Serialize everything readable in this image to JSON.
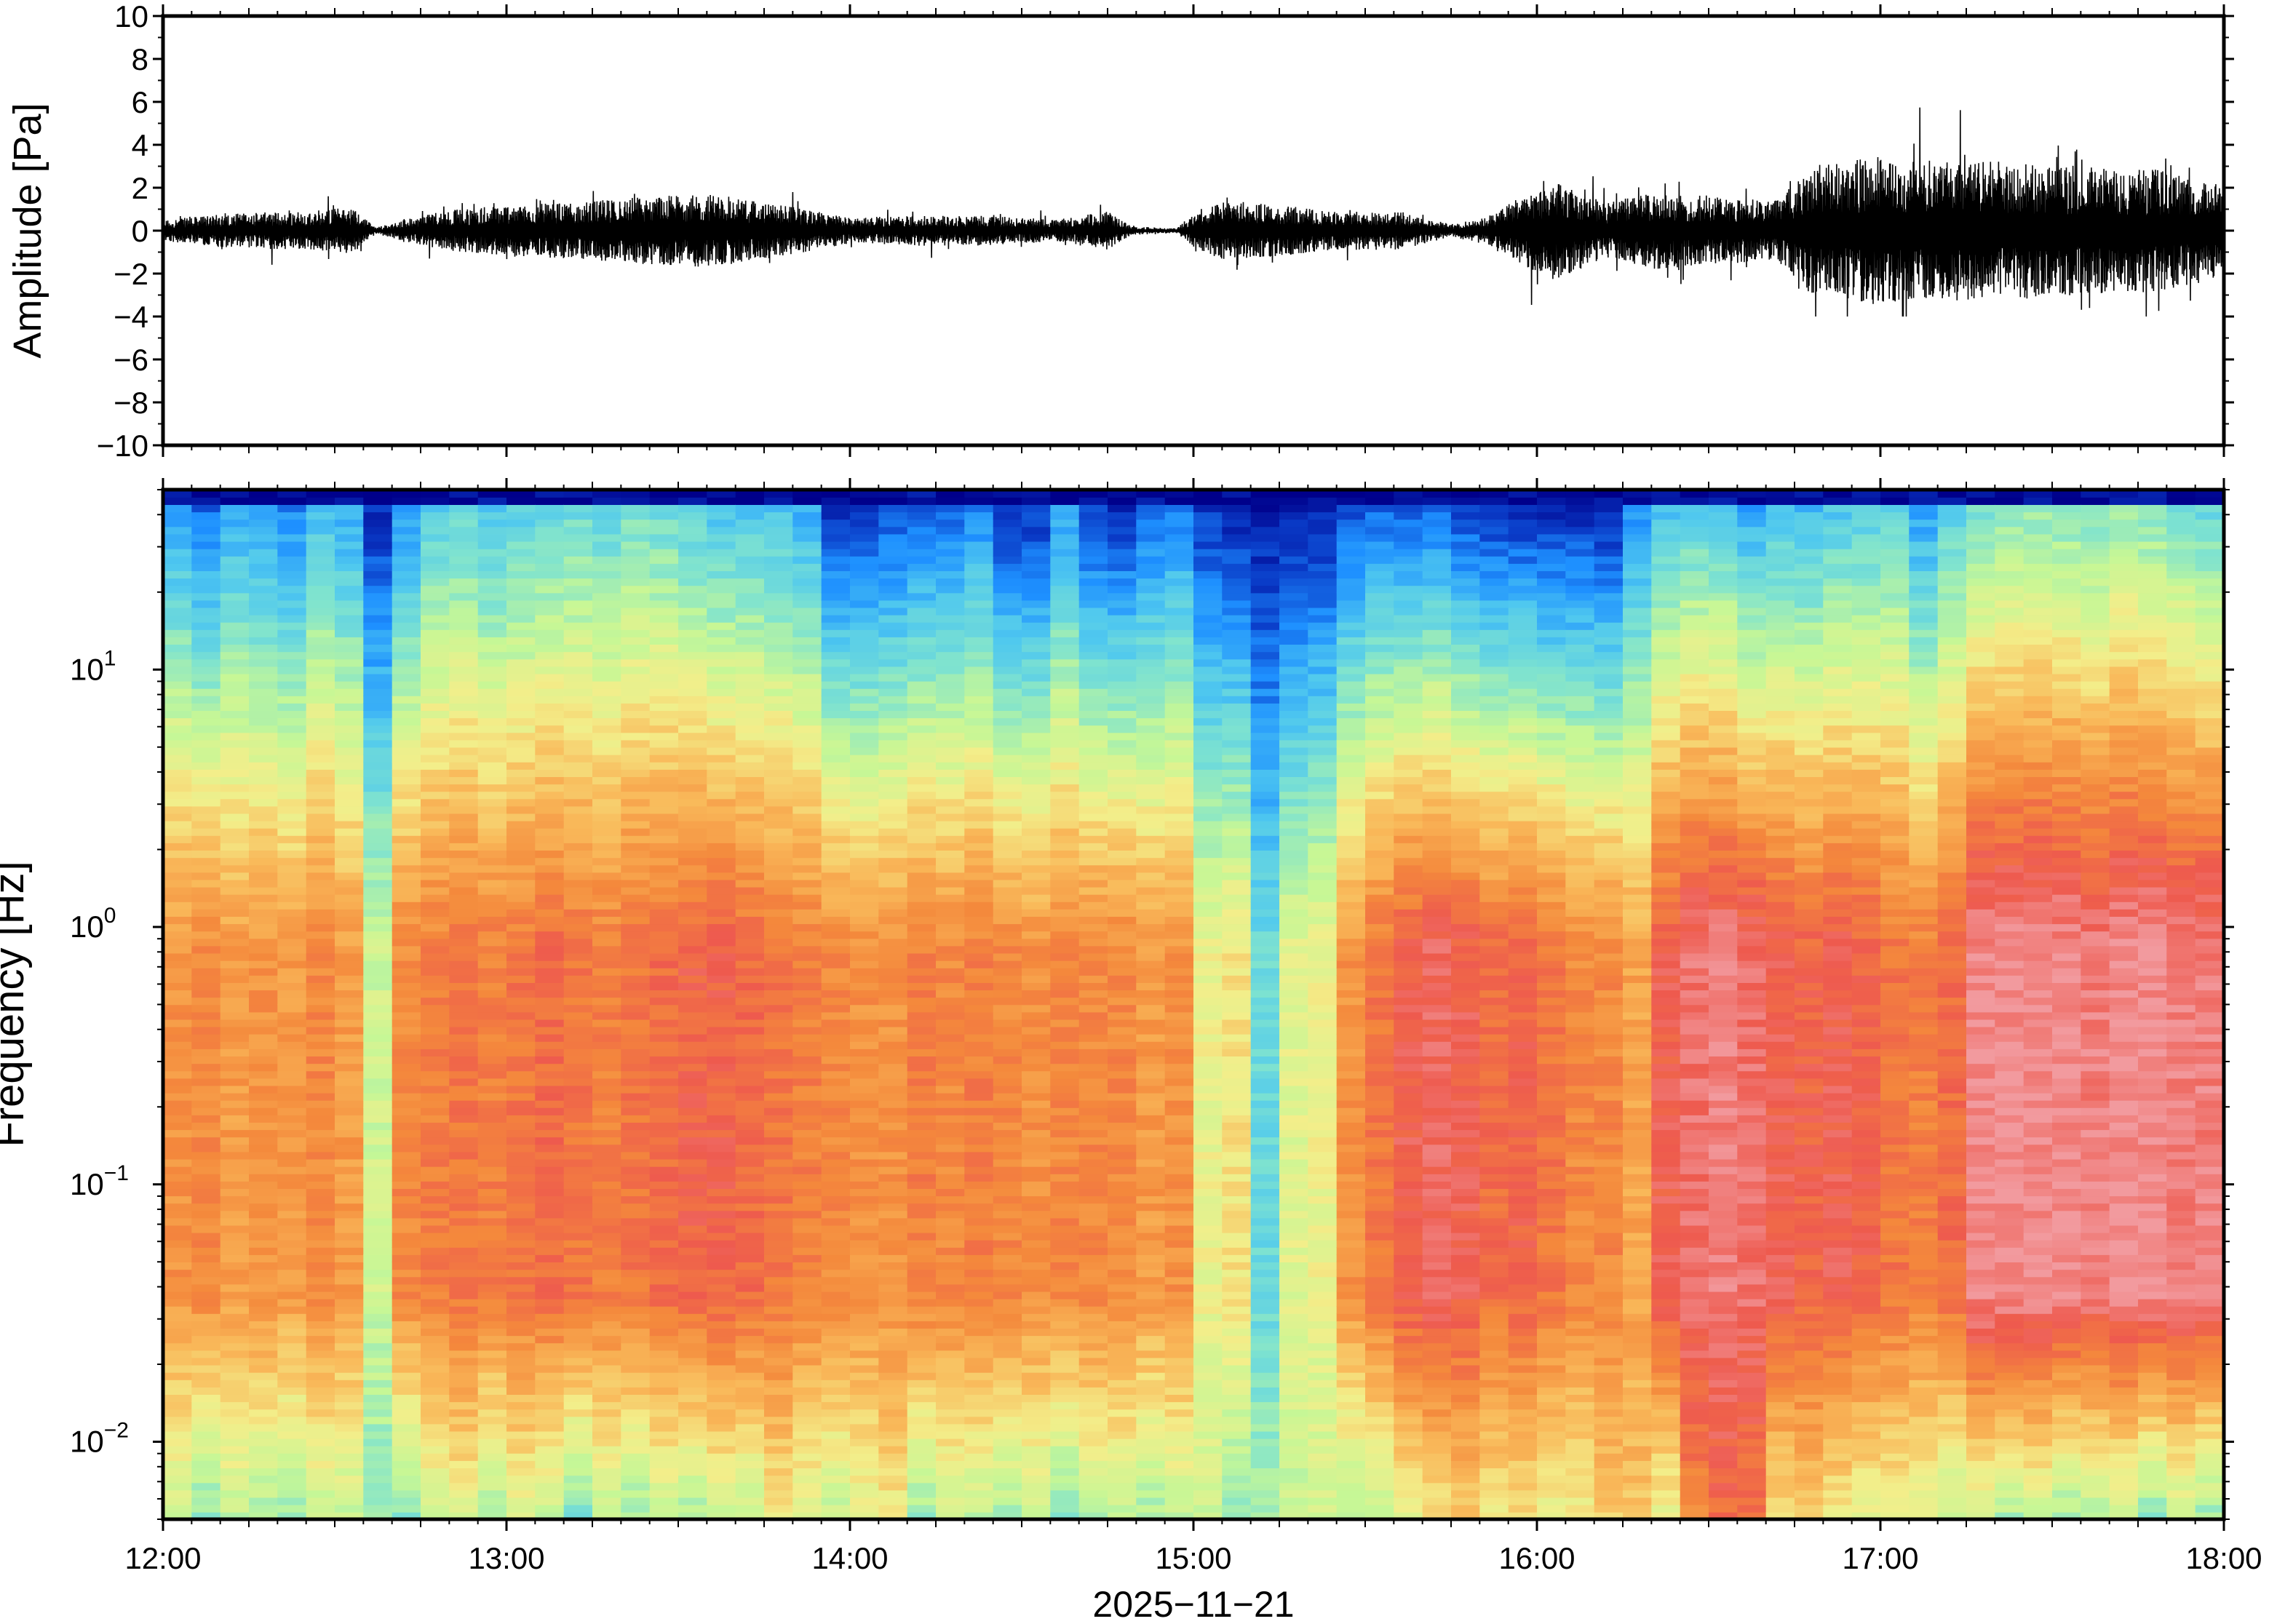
{
  "chart_data": [
    {
      "type": "line",
      "title": "",
      "ylabel": "Amplitude [Pa]",
      "xlabel": "",
      "ylim": [
        -10,
        10
      ],
      "y_ticks": [
        10,
        8,
        6,
        4,
        2,
        0,
        -2,
        -4,
        -6,
        -8,
        -10
      ],
      "y_tick_labels": [
        "10",
        "8",
        "6",
        "4",
        "2",
        "0",
        "−2",
        "−4",
        "−6",
        "−8",
        "−10"
      ],
      "series": [
        {
          "time_unit": "hour of day",
          "envelope_t": [
            12.0,
            12.2,
            12.4,
            12.55,
            12.62,
            12.8,
            13.0,
            13.2,
            13.4,
            13.6,
            13.8,
            14.0,
            14.2,
            14.4,
            14.6,
            14.75,
            14.82,
            14.95,
            15.02,
            15.1,
            15.25,
            15.4,
            15.6,
            15.75,
            15.85,
            15.95,
            16.05,
            16.2,
            16.35,
            16.5,
            16.7,
            16.8,
            17.0,
            17.2,
            17.4,
            17.6,
            17.8,
            18.0
          ],
          "envelope_amp_pa": [
            0.5,
            0.8,
            0.9,
            1.1,
            0.15,
            0.9,
            1.2,
            1.3,
            1.6,
            1.7,
            1.2,
            0.6,
            0.7,
            0.7,
            0.5,
            0.9,
            0.2,
            0.1,
            1.0,
            1.4,
            1.2,
            0.9,
            0.9,
            0.3,
            0.6,
            1.6,
            2.3,
            1.3,
            1.8,
            1.6,
            1.4,
            3.0,
            3.5,
            3.3,
            3.2,
            3.0,
            2.9,
            2.2
          ],
          "peak_positive_pa": 5.8,
          "peak_negative_pa": -4.0
        }
      ]
    },
    {
      "type": "heatmap",
      "title": "",
      "ylabel": "Frequency [Hz]",
      "xlabel": "2025−11−21",
      "y_scale": "log",
      "ylim": [
        0.005,
        50
      ],
      "y_ticks": [
        0.01,
        0.1,
        1,
        10
      ],
      "y_tick_labels": [
        {
          "base": "10",
          "exp": "−2"
        },
        {
          "base": "10",
          "exp": "−1"
        },
        {
          "base": "10",
          "exp": "0"
        },
        {
          "base": "10",
          "exp": "1"
        }
      ],
      "x_range": [
        "12:00",
        "18:00"
      ],
      "x_tick_labels": [
        "12:00",
        "13:00",
        "14:00",
        "15:00",
        "16:00",
        "17:00",
        "18:00"
      ],
      "colormap": [
        "#00008b",
        "#0a3cc8",
        "#1e90ff",
        "#4fc8ef",
        "#7fe3cf",
        "#c6f796",
        "#f3ee8a",
        "#f9b859",
        "#f4893c",
        "#ee5a4e",
        "#f29a9e"
      ],
      "columns": {
        "count": 72,
        "time_unit": "hour of day",
        "level_unit": "relative power level 0-1 (colour scale)",
        "low_freq_level": [
          0.5,
          0.42,
          0.5,
          0.46,
          0.44,
          0.5,
          0.5,
          0.42,
          0.4,
          0.52,
          0.56,
          0.46,
          0.54,
          0.5,
          0.4,
          0.5,
          0.44,
          0.5,
          0.46,
          0.52,
          0.5,
          0.6,
          0.54,
          0.5,
          0.56,
          0.6,
          0.44,
          0.52,
          0.5,
          0.46,
          0.5,
          0.4,
          0.48,
          0.5,
          0.46,
          0.5,
          0.52,
          0.44,
          0.48,
          0.5,
          0.52,
          0.46,
          0.5,
          0.58,
          0.62,
          0.66,
          0.6,
          0.62,
          0.56,
          0.58,
          0.66,
          0.68,
          0.56,
          0.8,
          0.86,
          0.84,
          0.62,
          0.66,
          0.6,
          0.56,
          0.58,
          0.55,
          0.5,
          0.52,
          0.46,
          0.5,
          0.44,
          0.46,
          0.5,
          0.42,
          0.5,
          0.44
        ],
        "mid_freq_level": [
          0.78,
          0.8,
          0.76,
          0.78,
          0.76,
          0.8,
          0.76,
          0.52,
          0.8,
          0.82,
          0.84,
          0.82,
          0.84,
          0.86,
          0.84,
          0.82,
          0.84,
          0.86,
          0.88,
          0.88,
          0.86,
          0.84,
          0.82,
          0.8,
          0.78,
          0.78,
          0.82,
          0.8,
          0.82,
          0.8,
          0.78,
          0.8,
          0.8,
          0.8,
          0.76,
          0.78,
          0.58,
          0.62,
          0.36,
          0.56,
          0.58,
          0.78,
          0.84,
          0.9,
          0.92,
          0.9,
          0.86,
          0.88,
          0.84,
          0.8,
          0.8,
          0.74,
          0.9,
          0.94,
          0.96,
          0.94,
          0.9,
          0.88,
          0.9,
          0.88,
          0.84,
          0.82,
          0.86,
          0.98,
          0.98,
          0.98,
          0.98,
          0.96,
          0.98,
          0.98,
          0.96,
          0.96
        ],
        "high_freq_level": [
          0.2,
          0.12,
          0.22,
          0.18,
          0.16,
          0.26,
          0.22,
          0.05,
          0.18,
          0.3,
          0.32,
          0.28,
          0.3,
          0.32,
          0.34,
          0.32,
          0.36,
          0.34,
          0.3,
          0.26,
          0.28,
          0.26,
          0.22,
          0.04,
          0.06,
          0.08,
          0.1,
          0.12,
          0.16,
          0.04,
          0.05,
          0.2,
          0.06,
          0.04,
          0.12,
          0.14,
          0.06,
          0.02,
          0.03,
          0.01,
          0.03,
          0.08,
          0.12,
          0.1,
          0.12,
          0.06,
          0.04,
          0.03,
          0.02,
          0.03,
          0.02,
          0.18,
          0.26,
          0.3,
          0.28,
          0.2,
          0.26,
          0.24,
          0.28,
          0.3,
          0.32,
          0.2,
          0.3,
          0.36,
          0.38,
          0.4,
          0.38,
          0.36,
          0.4,
          0.38,
          0.36,
          0.32
        ]
      }
    }
  ]
}
